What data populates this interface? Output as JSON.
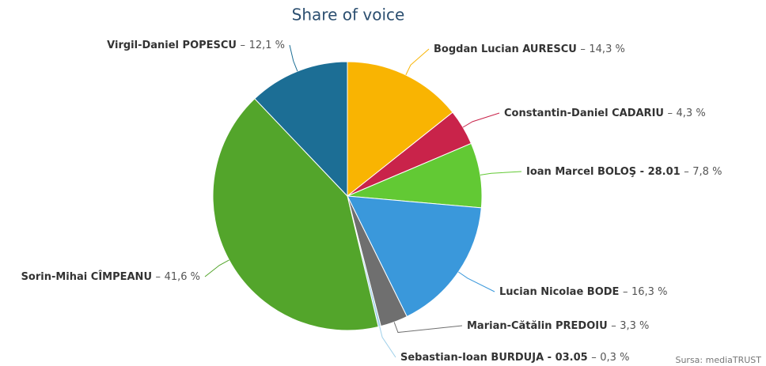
{
  "chart_data": {
    "type": "pie",
    "title": "Share of voice",
    "credit": "Sursa: mediaTRUST",
    "label_separator": "–",
    "categories": [
      "Bogdan Lucian AURESCU",
      "Constantin-Daniel CADARIU",
      "Ioan Marcel BOLOŞ - 28.01",
      "Lucian Nicolae BODE",
      "Marian-Cătălin PREDOIU",
      "Sebastian-Ioan BURDUJA - 03.05",
      "Sorin-Mihai CÎMPEANU",
      "Virgil-Daniel POPESCU"
    ],
    "values": [
      14.3,
      4.3,
      7.8,
      16.3,
      3.3,
      0.3,
      41.6,
      12.1
    ],
    "value_labels": [
      "14,3 %",
      "4,3 %",
      "7,8 %",
      "16,3 %",
      "3,3 %",
      "0,3 %",
      "41,6 %",
      "12,1 %"
    ],
    "colors": [
      "#f9b402",
      "#c9234a",
      "#62c934",
      "#3a98db",
      "#6f6f6f",
      "#9fd0ea",
      "#53a52b",
      "#1c6e95"
    ]
  }
}
